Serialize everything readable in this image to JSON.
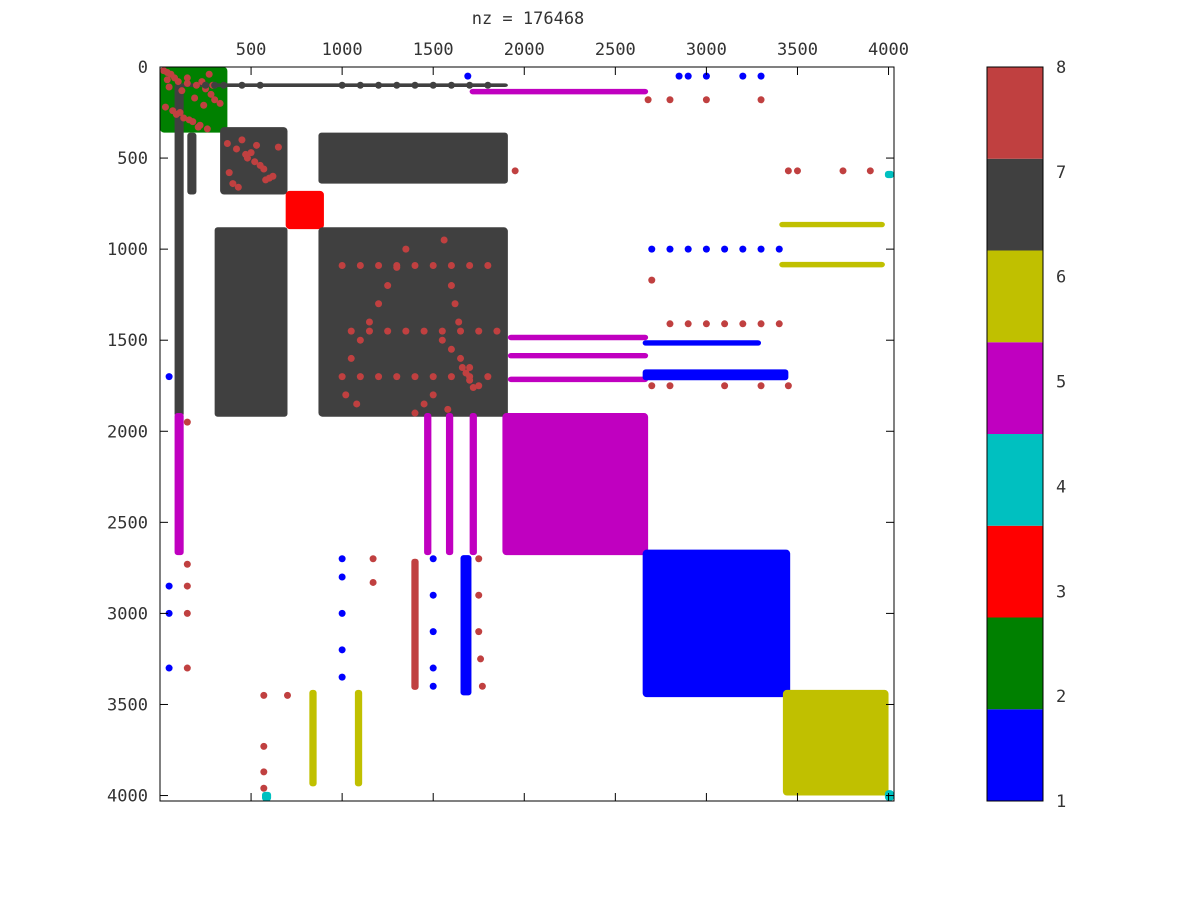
{
  "chart_data": {
    "type": "scatter",
    "title": "nz = 176468",
    "xlabel": "",
    "ylabel": "",
    "xlim": [
      0,
      4030
    ],
    "ylim": [
      0,
      4030
    ],
    "y_inverted": true,
    "x_axis_position": "top",
    "grid": false,
    "x_ticks": [
      500,
      1000,
      1500,
      2000,
      2500,
      3000,
      3500,
      4000
    ],
    "y_ticks": [
      0,
      500,
      1000,
      1500,
      2000,
      2500,
      3000,
      3500,
      4000
    ],
    "colorbar": {
      "range": [
        1,
        8
      ],
      "ticks": [
        1,
        2,
        3,
        4,
        5,
        6,
        7,
        8
      ],
      "colors": [
        "#0000ff",
        "#008000",
        "#ff0000",
        "#00c0c0",
        "#c000c0",
        "#c0c000",
        "#404040",
        "#c04040"
      ]
    },
    "blocks": [
      {
        "value": 2,
        "x": [
          0,
          370
        ],
        "y": [
          0,
          360
        ]
      },
      {
        "value": 7,
        "x": [
          330,
          700
        ],
        "y": [
          330,
          700
        ]
      },
      {
        "value": 3,
        "x": [
          690,
          900
        ],
        "y": [
          680,
          890
        ]
      },
      {
        "value": 7,
        "x": [
          870,
          1910
        ],
        "y": [
          880,
          1920
        ]
      },
      {
        "value": 5,
        "x": [
          1880,
          2680
        ],
        "y": [
          1900,
          2680
        ]
      },
      {
        "value": 1,
        "x": [
          2650,
          3460
        ],
        "y": [
          2650,
          3460
        ]
      },
      {
        "value": 6,
        "x": [
          3420,
          4000
        ],
        "y": [
          3420,
          4000
        ]
      },
      {
        "value": 4,
        "x": [
          3980,
          4030
        ],
        "y": [
          3970,
          4030
        ]
      }
    ],
    "strips": [
      {
        "value": 7,
        "x": [
          100,
          1910
        ],
        "y": [
          90,
          110
        ]
      },
      {
        "value": 7,
        "x": [
          870,
          1910
        ],
        "y": [
          360,
          640
        ]
      },
      {
        "value": 5,
        "x": [
          1700,
          2680
        ],
        "y": [
          120,
          150
        ]
      },
      {
        "value": 5,
        "x": [
          1910,
          2680
        ],
        "y": [
          1470,
          1500
        ]
      },
      {
        "value": 5,
        "x": [
          1910,
          2680
        ],
        "y": [
          1570,
          1600
        ]
      },
      {
        "value": 5,
        "x": [
          1910,
          2680
        ],
        "y": [
          1700,
          1730
        ]
      },
      {
        "value": 1,
        "x": [
          2650,
          3450
        ],
        "y": [
          1660,
          1720
        ]
      },
      {
        "value": 1,
        "x": [
          2650,
          3300
        ],
        "y": [
          1500,
          1530
        ]
      },
      {
        "value": 6,
        "x": [
          3400,
          3980
        ],
        "y": [
          850,
          880
        ]
      },
      {
        "value": 6,
        "x": [
          3400,
          3980
        ],
        "y": [
          1070,
          1100
        ]
      },
      {
        "value": 7,
        "x": [
          80,
          130
        ],
        "y": [
          90,
          1920
        ]
      },
      {
        "value": 7,
        "x": [
          150,
          200
        ],
        "y": [
          360,
          700
        ]
      },
      {
        "value": 7,
        "x": [
          300,
          700
        ],
        "y": [
          880,
          1920
        ]
      },
      {
        "value": 5,
        "x": [
          80,
          130
        ],
        "y": [
          1900,
          2680
        ]
      },
      {
        "value": 5,
        "x": [
          1450,
          1490
        ],
        "y": [
          1900,
          2680
        ]
      },
      {
        "value": 5,
        "x": [
          1570,
          1610
        ],
        "y": [
          1900,
          2680
        ]
      },
      {
        "value": 5,
        "x": [
          1700,
          1740
        ],
        "y": [
          1900,
          2680
        ]
      },
      {
        "value": 6,
        "x": [
          820,
          860
        ],
        "y": [
          3420,
          3950
        ]
      },
      {
        "value": 6,
        "x": [
          1070,
          1110
        ],
        "y": [
          3420,
          3950
        ]
      },
      {
        "value": 1,
        "x": [
          1650,
          1710
        ],
        "y": [
          2680,
          3450
        ]
      },
      {
        "value": 8,
        "x": [
          1380,
          1420
        ],
        "y": [
          2700,
          3420
        ]
      },
      {
        "value": 4,
        "x": [
          3980,
          4030
        ],
        "y": [
          570,
          610
        ]
      },
      {
        "value": 4,
        "x": [
          560,
          610
        ],
        "y": [
          3980,
          4030
        ]
      }
    ],
    "points": [
      {
        "value": 8,
        "x": [
          20,
          40,
          60,
          80,
          100,
          150,
          200,
          250,
          280,
          300,
          330,
          30,
          70,
          90,
          130,
          180,
          220,
          260,
          50,
          120,
          190,
          240,
          110,
          160,
          210,
          270,
          40,
          150,
          230,
          290
        ],
        "y": [
          20,
          30,
          40,
          60,
          80,
          90,
          100,
          120,
          150,
          180,
          200,
          220,
          240,
          260,
          280,
          300,
          320,
          340,
          110,
          130,
          170,
          210,
          250,
          290,
          330,
          40,
          70,
          60,
          80,
          100
        ]
      },
      {
        "value": 8,
        "x": [
          370,
          420,
          470,
          520,
          570,
          620,
          400,
          450,
          500,
          550,
          600,
          650,
          380,
          430,
          480,
          530,
          580
        ],
        "y": [
          420,
          450,
          480,
          520,
          560,
          600,
          640,
          400,
          470,
          540,
          610,
          440,
          580,
          660,
          500,
          430,
          620
        ]
      },
      {
        "value": 8,
        "x": [
          1000,
          1100,
          1200,
          1300,
          1400,
          1500,
          1600,
          1700,
          1800,
          1050,
          1150,
          1250,
          1350,
          1450,
          1550,
          1650,
          1750,
          1850,
          1000,
          1100,
          1200,
          1300,
          1400,
          1500,
          1600,
          1700,
          1800,
          1550,
          1600,
          1650,
          1700,
          1750,
          1500,
          1450,
          1400,
          1350,
          1300,
          1250,
          1200,
          1150,
          1100,
          1050,
          1020,
          1080,
          1600,
          1620,
          1640,
          1660,
          1680,
          1700,
          1720,
          1580,
          1560
        ],
        "y": [
          1090,
          1090,
          1090,
          1090,
          1090,
          1090,
          1090,
          1090,
          1090,
          1450,
          1450,
          1450,
          1450,
          1450,
          1450,
          1450,
          1450,
          1450,
          1700,
          1700,
          1700,
          1700,
          1700,
          1700,
          1700,
          1700,
          1700,
          1500,
          1550,
          1600,
          1650,
          1750,
          1800,
          1850,
          1900,
          1000,
          1100,
          1200,
          1300,
          1400,
          1500,
          1600,
          1800,
          1850,
          1200,
          1300,
          1400,
          1650,
          1680,
          1720,
          1760,
          1880,
          950
        ]
      },
      {
        "value": 8,
        "x": [
          1950,
          2680,
          2800,
          3000,
          3300,
          3450,
          3500,
          3750,
          3900
        ],
        "y": [
          570,
          180,
          180,
          180,
          180,
          570,
          570,
          570,
          570
        ]
      },
      {
        "value": 8,
        "x": [
          2800,
          2900,
          3000,
          3100,
          3200,
          3300,
          3400,
          2700,
          2800,
          3100,
          3300,
          3450,
          2700
        ],
        "y": [
          1410,
          1410,
          1410,
          1410,
          1410,
          1410,
          1410,
          1750,
          1750,
          1750,
          1750,
          1750,
          1170
        ]
      },
      {
        "value": 8,
        "x": [
          150,
          150,
          150,
          150,
          150,
          1170,
          1170,
          1750,
          1750,
          1750,
          1760,
          1770,
          570,
          570,
          570,
          570,
          700
        ],
        "y": [
          2730,
          2850,
          3000,
          3300,
          1950,
          2700,
          2830,
          2700,
          2900,
          3100,
          3250,
          3400,
          3450,
          3730,
          3870,
          3960,
          3450
        ]
      },
      {
        "value": 1,
        "x": [
          1690,
          2850,
          2900,
          3000,
          3200,
          3300,
          2700,
          2800,
          2900,
          3000,
          3100,
          3200,
          3300,
          3400,
          50,
          50,
          50,
          50,
          1000,
          1000,
          1000,
          1000,
          1000,
          1500,
          1500,
          1500,
          1500,
          1500
        ],
        "y": [
          50,
          50,
          50,
          50,
          50,
          50,
          1000,
          1000,
          1000,
          1000,
          1000,
          1000,
          1000,
          1000,
          1700,
          2850,
          3000,
          3300,
          2700,
          2800,
          3000,
          3200,
          3350,
          2700,
          2900,
          3100,
          3300,
          3400
        ]
      },
      {
        "value": 7,
        "x": [
          1000,
          1100,
          1200,
          1300,
          1400,
          1500,
          1600,
          1700,
          1800,
          250,
          300,
          350,
          450,
          550
        ],
        "y": [
          100,
          100,
          100,
          100,
          100,
          100,
          100,
          100,
          100,
          100,
          100,
          100,
          100,
          100
        ]
      }
    ]
  }
}
